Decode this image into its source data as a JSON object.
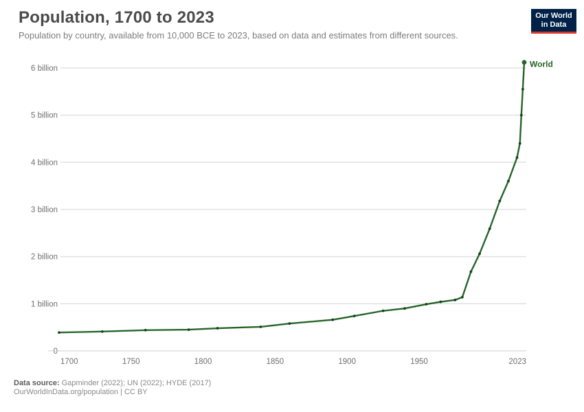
{
  "header": {
    "title": "Population, 1700 to 2023",
    "subtitle": "Population by country, available from 10,000 BCE to 2023, based on data and estimates from different sources."
  },
  "logo": {
    "line1": "Our World",
    "line2": "in Data",
    "bg_color": "#002147",
    "accent_color": "#d33a2c"
  },
  "chart_data": {
    "type": "line",
    "title": "Population, 1700 to 2023",
    "xlabel": "",
    "ylabel": "",
    "unit": "billion people",
    "grid": true,
    "legend_position": "end-of-line",
    "x_range": [
      1700,
      2023
    ],
    "y_range": [
      0,
      6.2
    ],
    "x_ticks": [
      "1700",
      "1750",
      "1800",
      "1850",
      "1900",
      "1950",
      "2023"
    ],
    "x_tick_years": [
      1700,
      1750,
      1800,
      1850,
      1900,
      1950,
      2023
    ],
    "y_ticks": [
      {
        "value": 0,
        "label": "0"
      },
      {
        "value": 1,
        "label": "1 billion"
      },
      {
        "value": 2,
        "label": "2 billion"
      },
      {
        "value": 3,
        "label": "3 billion"
      },
      {
        "value": 4,
        "label": "4 billion"
      },
      {
        "value": 5,
        "label": "5 billion"
      },
      {
        "value": 6,
        "label": "6 billion"
      }
    ],
    "series": [
      {
        "name": "World",
        "color": "#256428",
        "marker_color": "#14421a",
        "x": [
          1700,
          1730,
          1760,
          1790,
          1810,
          1840,
          1860,
          1890,
          1905,
          1925,
          1940,
          1955,
          1965,
          1975,
          1980,
          1986,
          1992,
          1999,
          2006,
          2012,
          2018,
          2020,
          2021,
          2022,
          2023
        ],
        "y": [
          0.39,
          0.41,
          0.44,
          0.45,
          0.48,
          0.51,
          0.58,
          0.66,
          0.74,
          0.85,
          0.9,
          0.99,
          1.04,
          1.08,
          1.14,
          1.68,
          2.06,
          2.59,
          3.18,
          3.6,
          4.1,
          4.4,
          5.0,
          5.55,
          6.12
        ]
      }
    ],
    "colors": {
      "gridline": "#e2e2e2",
      "axis": "#cccccc",
      "tick_text": "#6e6e6e"
    }
  },
  "footer": {
    "source_bold": "Data source:",
    "source_rest": " Gapminder (2022); UN (2022); HYDE (2017)",
    "line2": "OurWorldInData.org/population | CC BY"
  }
}
